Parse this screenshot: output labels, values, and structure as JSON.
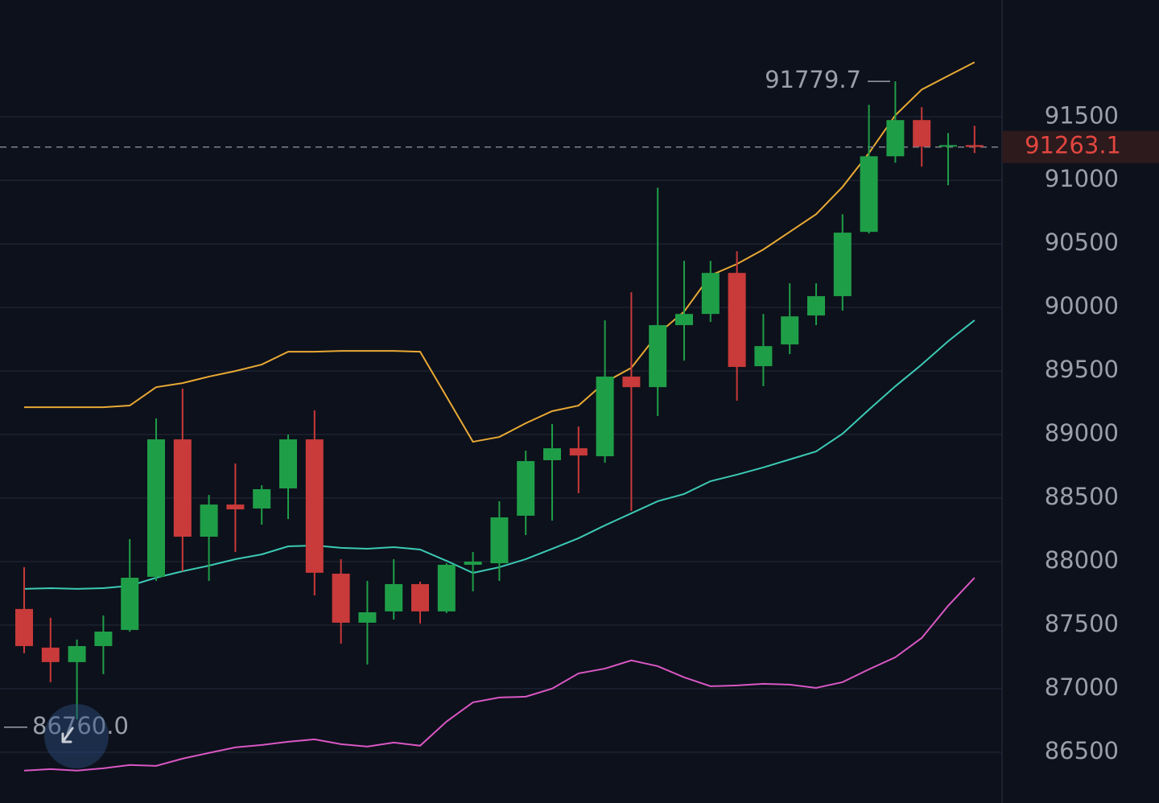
{
  "chart_data": {
    "type": "candlestick",
    "categories": [
      null,
      null,
      null,
      null,
      null,
      null,
      null,
      null,
      null,
      null,
      null,
      null,
      null,
      null,
      null,
      null,
      null,
      null,
      null,
      null,
      null,
      null,
      null,
      null,
      null,
      null,
      null,
      null,
      null,
      null,
      null,
      null,
      null,
      null,
      null,
      null,
      null
    ],
    "open": [
      87627,
      87323,
      87209,
      87335,
      87462,
      87880,
      88962,
      88196,
      88449,
      88418,
      88576,
      88962,
      87905,
      87519,
      87608,
      87823,
      87608,
      87975,
      87987,
      88361,
      88798,
      88892,
      88829,
      89456,
      89373,
      89861,
      89949,
      90272,
      89538,
      89709,
      89937,
      90089,
      90595,
      91190,
      91475,
      91266,
      91278
    ],
    "high": [
      87956,
      87557,
      87386,
      87576,
      88177,
      89127,
      89361,
      88525,
      88772,
      88601,
      89000,
      89190,
      88019,
      87848,
      88019,
      87842,
      87987,
      88076,
      88475,
      88873,
      89082,
      89063,
      89899,
      90120,
      90943,
      90367,
      90367,
      90443,
      89949,
      90190,
      90190,
      90734,
      91595,
      91779.7,
      91576,
      91373,
      91430
    ],
    "low": [
      87279,
      87051,
      86760,
      87114,
      87449,
      87848,
      87924,
      87848,
      88076,
      88291,
      88335,
      87734,
      87354,
      87190,
      87544,
      87513,
      87595,
      87766,
      87848,
      88209,
      88323,
      88538,
      88778,
      88399,
      89146,
      89582,
      89886,
      89266,
      89380,
      89633,
      89861,
      89975,
      90582,
      91139,
      91108,
      90962,
      91215
    ],
    "close": [
      87335,
      87209,
      87335,
      87449,
      87873,
      88962,
      88196,
      88449,
      88411,
      88570,
      88962,
      87912,
      87519,
      87601,
      87823,
      87608,
      87975,
      88000,
      88348,
      88791,
      88892,
      88835,
      89456,
      89373,
      89861,
      89949,
      90272,
      89532,
      89696,
      89930,
      90089,
      90589,
      91190,
      91475,
      91266,
      91278,
      91263.1
    ],
    "up_color": "#1f9e48",
    "down_color": "#c93a3a",
    "overlays": [
      {
        "color": "#e9a935",
        "values": [
          89215,
          89215,
          89215,
          89215,
          89228,
          89373,
          89405,
          89456,
          89500,
          89551,
          89652,
          89652,
          89658,
          89658,
          89658,
          89652,
          89298,
          88943,
          88981,
          89089,
          89184,
          89228,
          89411,
          89525,
          89791,
          89968,
          90253,
          90342,
          90456,
          90595,
          90734,
          90949,
          91215,
          91513,
          91715,
          91823,
          91930
        ]
      },
      {
        "color": "#3ccab5",
        "values": [
          87785,
          87791,
          87785,
          87791,
          87810,
          87873,
          87924,
          87968,
          88019,
          88057,
          88120,
          88127,
          88108,
          88101,
          88114,
          88095,
          88006,
          87911,
          87956,
          88019,
          88101,
          88184,
          88285,
          88380,
          88475,
          88532,
          88633,
          88684,
          88741,
          88804,
          88867,
          89006,
          89196,
          89380,
          89551,
          89734,
          89899
        ]
      },
      {
        "color": "#d957c4",
        "values": [
          86355,
          86367,
          86355,
          86373,
          86399,
          86392,
          86449,
          86494,
          86538,
          86557,
          86582,
          86601,
          86563,
          86544,
          86576,
          86551,
          86741,
          86892,
          86930,
          86937,
          87000,
          87120,
          87158,
          87222,
          87177,
          87089,
          87019,
          87025,
          87038,
          87032,
          87006,
          87051,
          87152,
          87247,
          87399,
          87652,
          87873
        ]
      }
    ],
    "ylim": [
      86100,
      92420
    ],
    "yticks": [
      86500,
      87000,
      87500,
      88000,
      88500,
      89000,
      89500,
      90000,
      90500,
      91000,
      91500
    ],
    "grid": true,
    "annotations": [
      {
        "value": 91779.7,
        "label": "91779.7"
      },
      {
        "value": 86760,
        "label": "86760.0"
      }
    ],
    "last_price": {
      "value": 91263.1,
      "label": "91263.1"
    }
  }
}
